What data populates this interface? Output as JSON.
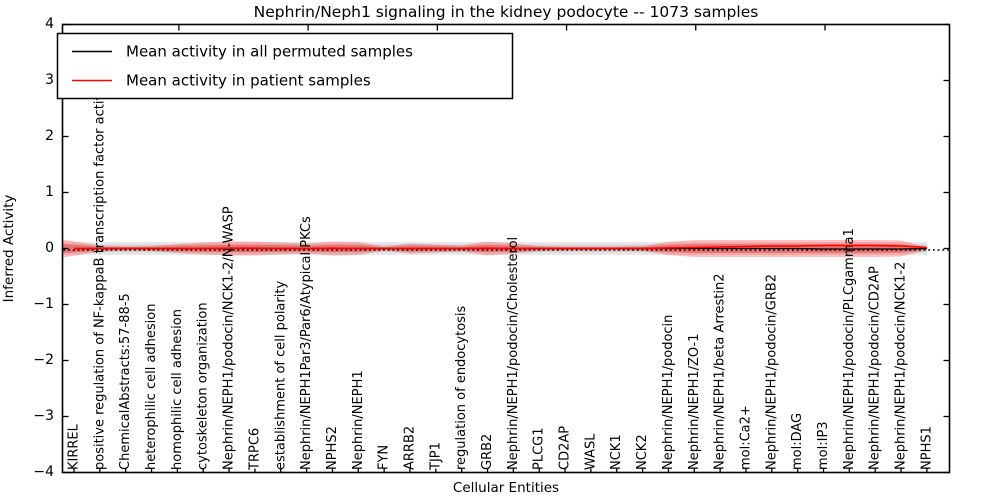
{
  "title": "Nephrin/Neph1 signaling in the kidney podocyte -- 1073 samples",
  "legend": {
    "items": [
      {
        "label": "Mean activity in all permuted samples",
        "color": "#000000"
      },
      {
        "label": "Mean activity in patient samples",
        "color": "#ff0000"
      }
    ]
  },
  "axes": {
    "ylabel": "Inferred Activity",
    "xlabel": "Cellular Entities",
    "yticks": [
      "4",
      "3",
      "2",
      "1",
      "0",
      "−1",
      "−2",
      "−3",
      "−4"
    ]
  },
  "chart_data": {
    "type": "line",
    "title": "Nephrin/Neph1 signaling in the kidney podocyte -- 1073 samples",
    "xlabel": "Cellular Entities",
    "ylabel": "Inferred Activity",
    "ylim": [
      -4,
      4
    ],
    "grid": false,
    "legend_position": "upper left",
    "categories": [
      "KIRREL",
      "positive regulation of NF-kappaB transcription factor activity",
      "ChemicalAbstracts:57-88-5",
      "heterophilic cell adhesion",
      "homophilic cell adhesion",
      "cytoskeleton organization",
      "Nephrin/NEPH1/podocin/NCK1-2/N-WASP",
      "TRPC6",
      "establishment of cell polarity",
      "Nephrin/NEPH1Par3/Par6/Atypical PKCs",
      "NPHS2",
      "Nephrin/NEPH1",
      "FYN",
      "ARRB2",
      "TJP1",
      "regulation of endocytosis",
      "GRB2",
      "Nephrin/NEPH1/podocin/Cholesterol",
      "PLCG1",
      "CD2AP",
      "WASL",
      "NCK1",
      "NCK2",
      "Nephrin/NEPH1/podocin",
      "Nephrin/NEPH1/ZO-1",
      "Nephrin/NEPH1/beta Arrestin2",
      "mol:Ca2+",
      "Nephrin/NEPH1/podocin/GRB2",
      "mol:DAG",
      "mol:IP3",
      "Nephrin/NEPH1/podocin/PLCgamma1",
      "Nephrin/NEPH1/podocin/CD2AP",
      "Nephrin/NEPH1/podocin/NCK1-2",
      "NPHS1"
    ],
    "series": [
      {
        "name": "Mean activity in all permuted samples",
        "color": "#000000",
        "values": [
          0,
          0,
          0,
          0,
          0,
          0,
          0,
          0,
          0,
          0,
          0,
          0,
          0,
          0,
          0,
          0,
          0,
          0,
          0,
          0,
          0,
          0,
          0,
          0,
          0,
          0,
          0,
          0,
          0,
          -0.009,
          -0.009,
          -0.009,
          -0.009,
          0
        ]
      },
      {
        "name": "Mean activity in patient samples",
        "color": "#ff0000",
        "values": [
          0,
          0,
          0,
          0,
          0,
          0,
          0.005,
          0.005,
          0,
          0,
          0.005,
          0,
          0,
          0,
          0,
          0,
          0.005,
          0,
          0,
          0,
          0,
          0,
          0,
          0.01,
          0.018,
          0.027,
          0.036,
          0.045,
          0.045,
          0.053,
          0.053,
          0.053,
          0.045,
          0.018
        ]
      }
    ],
    "bands": {
      "patient_outer_halfwidth": [
        0.16,
        0.053,
        0.036,
        0.045,
        0.08,
        0.107,
        0.125,
        0.125,
        0.107,
        0.089,
        0.125,
        0.116,
        0.036,
        0.089,
        0.071,
        0.053,
        0.125,
        0.089,
        0.045,
        0.036,
        0.036,
        0.036,
        0.045,
        0.116,
        0.152,
        0.152,
        0.152,
        0.152,
        0.152,
        0.152,
        0.152,
        0.152,
        0.143,
        0.027
      ],
      "patient_inner_ratio": 0.55,
      "patient_band_color": "#ff0000",
      "permuted_outer_halfwidth": 0.116,
      "permuted_inner_halfwidth": 0.071,
      "permuted_band_color": "#000000"
    },
    "zero_line": 0
  }
}
